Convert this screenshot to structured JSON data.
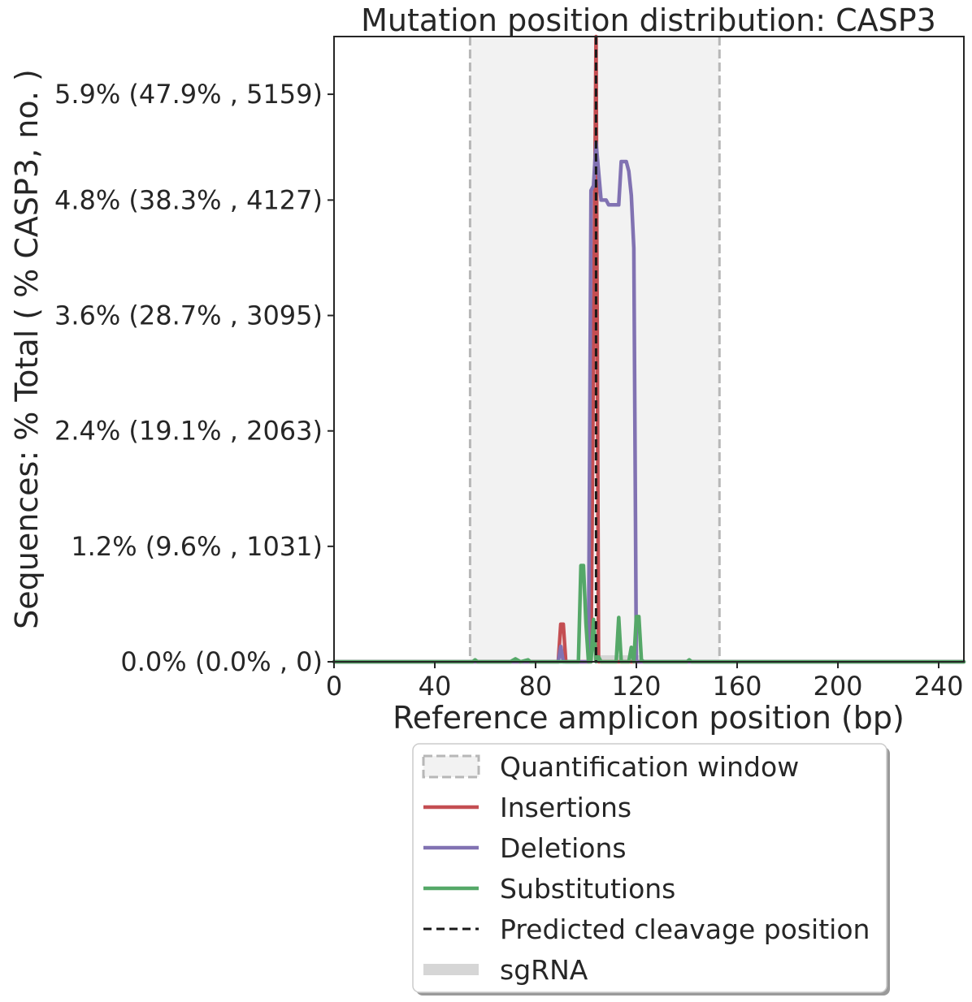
{
  "chart_data": {
    "type": "line",
    "title": "Mutation position distribution: CASP3",
    "xlabel": "Reference amplicon position (bp)",
    "ylabel": "Sequences: % Total ( % CASP3, no. )",
    "xlim": [
      0,
      250
    ],
    "ylim": [
      0,
      6.5
    ],
    "x_ticks": [
      0,
      40,
      80,
      120,
      160,
      200,
      240
    ],
    "x_tick_labels": [
      "0",
      "40",
      "80",
      "120",
      "160",
      "200",
      "240"
    ],
    "y_ticks": [
      0,
      1.2,
      2.4,
      3.6,
      4.8,
      5.9
    ],
    "y_tick_labels": [
      "0.0% (0.0% , 0)",
      "1.2% (9.6% , 1031)",
      "2.4% (19.1% , 2063)",
      "3.6% (28.7% , 3095)",
      "4.8% (38.3% , 4127)",
      "5.9% (47.9% , 5159)"
    ],
    "quantification_window": [
      54,
      153
    ],
    "predicted_cleavage": 104,
    "sgrna": [
      103,
      122
    ],
    "grid": false,
    "legend_placement": "below",
    "series": [
      {
        "name": "Insertions",
        "color": "#c44e52",
        "points": [
          [
            0,
            0
          ],
          [
            89,
            0
          ],
          [
            90,
            0.39
          ],
          [
            91,
            0.39
          ],
          [
            92,
            0
          ],
          [
            102,
            0
          ],
          [
            104,
            6.5
          ],
          [
            105,
            0
          ],
          [
            250,
            0
          ]
        ]
      },
      {
        "name": "Deletions",
        "color": "#8172b2",
        "points": [
          [
            0,
            0
          ],
          [
            89,
            0
          ],
          [
            90,
            0.16
          ],
          [
            91,
            0
          ],
          [
            101,
            0
          ],
          [
            102,
            4.9
          ],
          [
            103,
            4.95
          ],
          [
            104,
            5.4
          ],
          [
            105,
            5.1
          ],
          [
            106,
            4.8
          ],
          [
            108,
            4.8
          ],
          [
            109,
            4.75
          ],
          [
            112,
            4.75
          ],
          [
            113,
            4.75
          ],
          [
            114,
            5.2
          ],
          [
            116,
            5.2
          ],
          [
            117,
            5.1
          ],
          [
            118,
            4.85
          ],
          [
            119,
            4.3
          ],
          [
            120,
            0
          ],
          [
            250,
            0
          ]
        ]
      },
      {
        "name": "Substitutions",
        "color": "#55a868",
        "points": [
          [
            0,
            0
          ],
          [
            55,
            0
          ],
          [
            56,
            0.02
          ],
          [
            57,
            0
          ],
          [
            70,
            0
          ],
          [
            72,
            0.03
          ],
          [
            74,
            0
          ],
          [
            77,
            0.02
          ],
          [
            78,
            0
          ],
          [
            97,
            0
          ],
          [
            98,
            1.0
          ],
          [
            99,
            1.0
          ],
          [
            100,
            0.4
          ],
          [
            101,
            0
          ],
          [
            102,
            0
          ],
          [
            103,
            0.44
          ],
          [
            104,
            0
          ],
          [
            105,
            0.05
          ],
          [
            106,
            0
          ],
          [
            112,
            0
          ],
          [
            113,
            0.46
          ],
          [
            114,
            0
          ],
          [
            117,
            0
          ],
          [
            118,
            0.15
          ],
          [
            119,
            0
          ],
          [
            120,
            0.47
          ],
          [
            121,
            0.47
          ],
          [
            122,
            0.02
          ],
          [
            123,
            0
          ],
          [
            140,
            0
          ],
          [
            141,
            0.02
          ],
          [
            142,
            0
          ],
          [
            250,
            0
          ]
        ]
      }
    ],
    "legend": [
      {
        "key": "quant",
        "label": "Quantification window"
      },
      {
        "key": "ins",
        "label": "Insertions"
      },
      {
        "key": "del",
        "label": "Deletions"
      },
      {
        "key": "sub",
        "label": "Substitutions"
      },
      {
        "key": "cut",
        "label": "Predicted cleavage position"
      },
      {
        "key": "sg",
        "label": "sgRNA"
      }
    ],
    "colors": {
      "window_fill": "#f2f2f2",
      "window_edge": "#b7b7b7",
      "cleavage": "#1a1a1a",
      "sgrna": "#d6d6d6",
      "axis": "#262626"
    }
  }
}
